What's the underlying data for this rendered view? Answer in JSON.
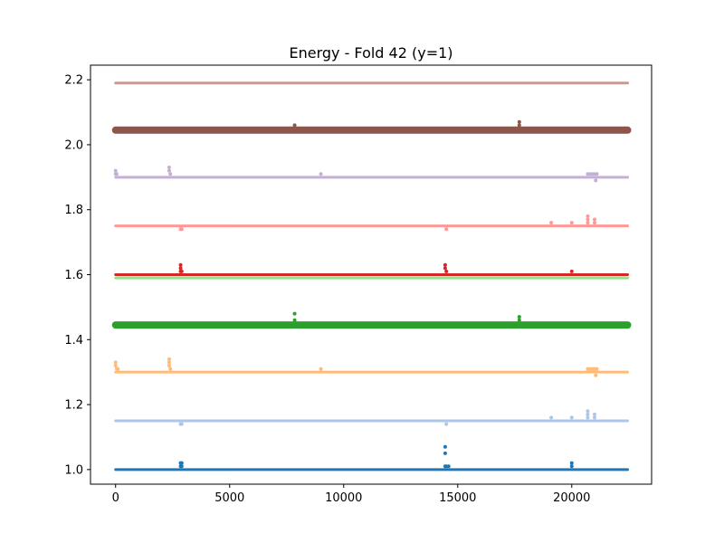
{
  "chart_data": {
    "type": "scatter",
    "title": "Energy - Fold 42 (y=1)",
    "xlabel": "",
    "ylabel": "",
    "xlim": [
      -1100,
      23500
    ],
    "ylim": [
      0.955,
      2.245
    ],
    "x_ticks": [
      0,
      5000,
      10000,
      15000,
      20000
    ],
    "x_tick_labels": [
      "0",
      "5000",
      "10000",
      "15000",
      "20000"
    ],
    "y_ticks": [
      1.0,
      1.2,
      1.4,
      1.6,
      1.8,
      2.0,
      2.2
    ],
    "y_tick_labels": [
      "1.0",
      "1.2",
      "1.4",
      "1.6",
      "1.8",
      "2.0",
      "2.2"
    ],
    "grid": false,
    "legend": "none",
    "x_range": [
      0,
      22450
    ],
    "series": [
      {
        "color": "#1f77b4",
        "baseline": 1.0,
        "band_width": 3,
        "points": [
          [
            2850,
            1.02
          ],
          [
            2850,
            1.01
          ],
          [
            2900,
            1.02
          ],
          [
            2900,
            1.01
          ],
          [
            14450,
            1.07
          ],
          [
            14450,
            1.05
          ],
          [
            14450,
            1.01
          ],
          [
            14500,
            1.01
          ],
          [
            14600,
            1.01
          ],
          [
            20000,
            1.02
          ],
          [
            20000,
            1.01
          ]
        ]
      },
      {
        "color": "#aec7e8",
        "baseline": 1.15,
        "band_width": 3,
        "points": [
          [
            2850,
            1.14
          ],
          [
            2900,
            1.14
          ],
          [
            14500,
            1.14
          ],
          [
            19100,
            1.16
          ],
          [
            20000,
            1.16
          ],
          [
            20700,
            1.18
          ],
          [
            20700,
            1.17
          ],
          [
            20700,
            1.16
          ],
          [
            21000,
            1.17
          ],
          [
            21000,
            1.16
          ]
        ]
      },
      {
        "color": "#ffbb78",
        "baseline": 1.3,
        "band_width": 3,
        "points": [
          [
            0,
            1.33
          ],
          [
            0,
            1.32
          ],
          [
            50,
            1.31
          ],
          [
            100,
            1.31
          ],
          [
            2350,
            1.34
          ],
          [
            2350,
            1.33
          ],
          [
            2350,
            1.32
          ],
          [
            2400,
            1.31
          ],
          [
            9000,
            1.31
          ],
          [
            20700,
            1.31
          ],
          [
            20800,
            1.31
          ],
          [
            20900,
            1.31
          ],
          [
            21000,
            1.31
          ],
          [
            21100,
            1.31
          ],
          [
            21050,
            1.29
          ]
        ]
      },
      {
        "color": "#2ca02c",
        "baseline": 1.445,
        "band_width": 8,
        "points": [
          [
            7850,
            1.48
          ],
          [
            7850,
            1.46
          ],
          [
            17700,
            1.47
          ],
          [
            17700,
            1.46
          ]
        ]
      },
      {
        "color": "#98df8a",
        "baseline": 1.59,
        "band_width": 3,
        "points": []
      },
      {
        "color": "#d62728",
        "baseline": 1.6,
        "band_width": 3,
        "points": [
          [
            2850,
            1.63
          ],
          [
            2850,
            1.62
          ],
          [
            2850,
            1.61
          ],
          [
            2900,
            1.61
          ],
          [
            14450,
            1.63
          ],
          [
            14450,
            1.62
          ],
          [
            14500,
            1.61
          ],
          [
            20000,
            1.61
          ]
        ]
      },
      {
        "color": "#ff9896",
        "baseline": 1.75,
        "band_width": 3,
        "points": [
          [
            2850,
            1.74
          ],
          [
            2900,
            1.74
          ],
          [
            14500,
            1.74
          ],
          [
            19100,
            1.76
          ],
          [
            20000,
            1.76
          ],
          [
            20700,
            1.78
          ],
          [
            20700,
            1.77
          ],
          [
            20700,
            1.76
          ],
          [
            21000,
            1.77
          ],
          [
            21000,
            1.76
          ]
        ]
      },
      {
        "color": "#c5b0d5",
        "baseline": 1.9,
        "band_width": 3,
        "points": [
          [
            0,
            1.92
          ],
          [
            0,
            1.91
          ],
          [
            50,
            1.91
          ],
          [
            2350,
            1.93
          ],
          [
            2350,
            1.92
          ],
          [
            2400,
            1.91
          ],
          [
            9000,
            1.91
          ],
          [
            20700,
            1.91
          ],
          [
            20800,
            1.91
          ],
          [
            20900,
            1.91
          ],
          [
            21000,
            1.91
          ],
          [
            21100,
            1.91
          ],
          [
            21050,
            1.89
          ]
        ]
      },
      {
        "color": "#8c564b",
        "baseline": 2.045,
        "band_width": 8,
        "points": [
          [
            7850,
            2.06
          ],
          [
            17700,
            2.07
          ],
          [
            17700,
            2.06
          ]
        ]
      },
      {
        "color": "#c49c94",
        "baseline": 2.19,
        "band_width": 3,
        "points": []
      }
    ]
  }
}
